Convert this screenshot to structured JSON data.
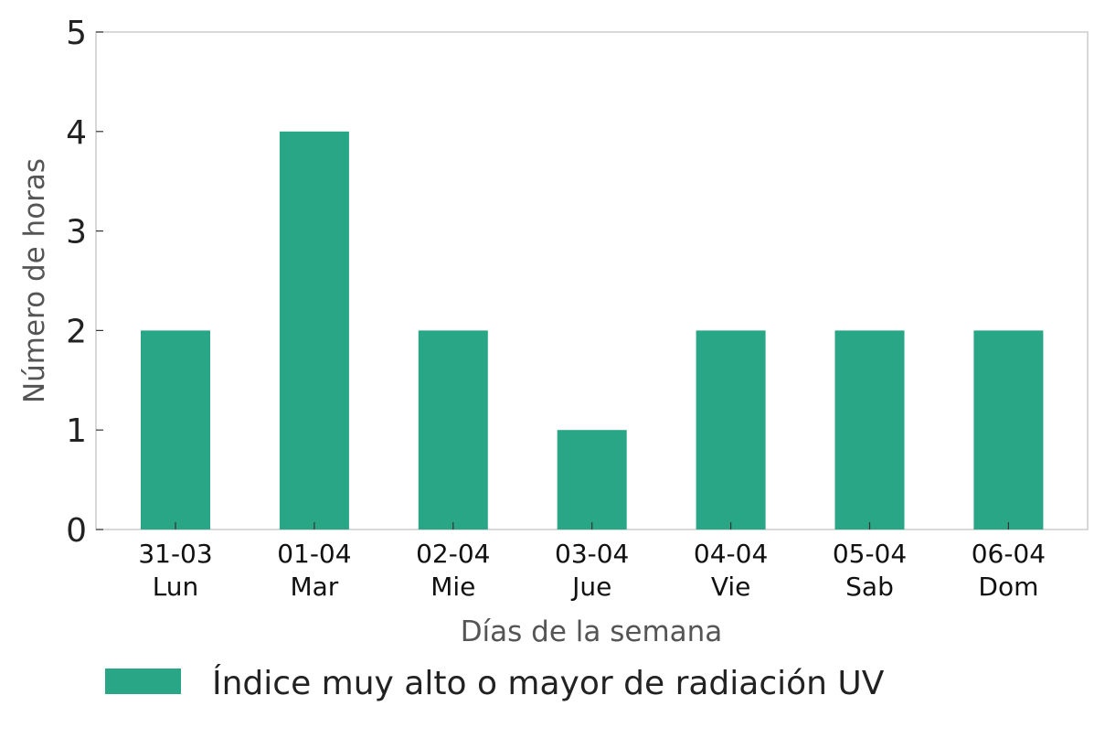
{
  "chart_data": {
    "type": "bar",
    "categories": [
      [
        "31-03",
        "Lun"
      ],
      [
        "01-04",
        "Mar"
      ],
      [
        "02-04",
        "Mie"
      ],
      [
        "03-04",
        "Jue"
      ],
      [
        "04-04",
        "Vie"
      ],
      [
        "05-04",
        "Sab"
      ],
      [
        "06-04",
        "Dom"
      ]
    ],
    "series": [
      {
        "name": "Índice muy alto o mayor de radiación UV",
        "values": [
          2,
          4,
          2,
          1,
          2,
          2,
          2
        ],
        "color": "#29a686"
      }
    ],
    "xlabel": "Días de la semana",
    "ylabel": "Número de horas",
    "ylim": [
      0,
      5
    ],
    "yticks": [
      "0",
      "1",
      "2",
      "3",
      "4",
      "5"
    ],
    "grid": false,
    "legend_position": "bottom-left",
    "frame_color": "#cccccc"
  }
}
